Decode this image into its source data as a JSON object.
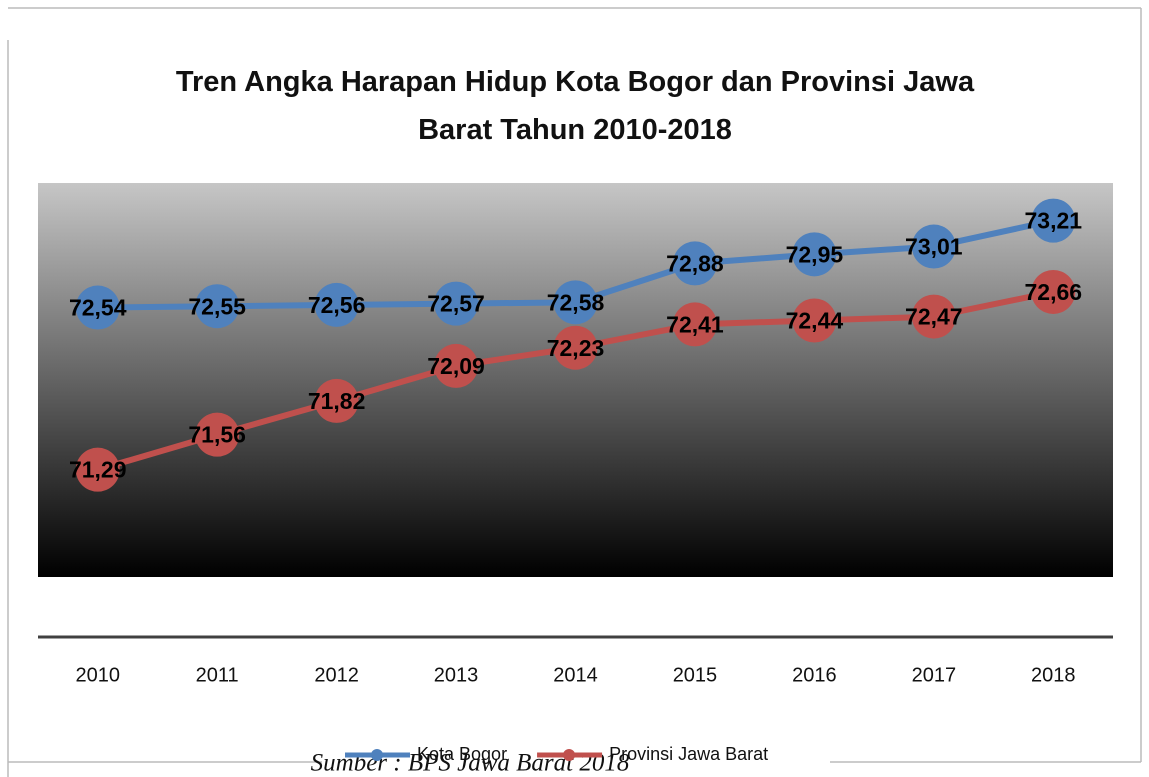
{
  "chart_data": {
    "type": "line",
    "title": "Tren Angka Harapan Hidup Kota Bogor dan Provinsi Jawa Barat Tahun 2010-2018",
    "categories": [
      "2010",
      "2011",
      "2012",
      "2013",
      "2014",
      "2015",
      "2016",
      "2017",
      "2018"
    ],
    "series": [
      {
        "name": "Kota Bogor",
        "color": "#4f81bd",
        "values": [
          72.54,
          72.55,
          72.56,
          72.57,
          72.58,
          72.88,
          72.95,
          73.01,
          73.21
        ],
        "value_labels": [
          "72,54",
          "72,55",
          "72,56",
          "72,57",
          "72,58",
          "72,88",
          "72,95",
          "73,01",
          "73,21"
        ]
      },
      {
        "name": "Provinsi Jawa Barat",
        "color": "#c0504d",
        "values": [
          71.29,
          71.56,
          71.82,
          72.09,
          72.23,
          72.41,
          72.44,
          72.47,
          72.66
        ],
        "value_labels": [
          "71,29",
          "71,56",
          "71,82",
          "72,09",
          "72,23",
          "72,41",
          "72,44",
          "72,47",
          "72,66"
        ]
      }
    ],
    "ylim": [
      70,
      73.5
    ],
    "legend": "bottom",
    "source": "Sumber : BPS Jawa Barat 2018"
  }
}
